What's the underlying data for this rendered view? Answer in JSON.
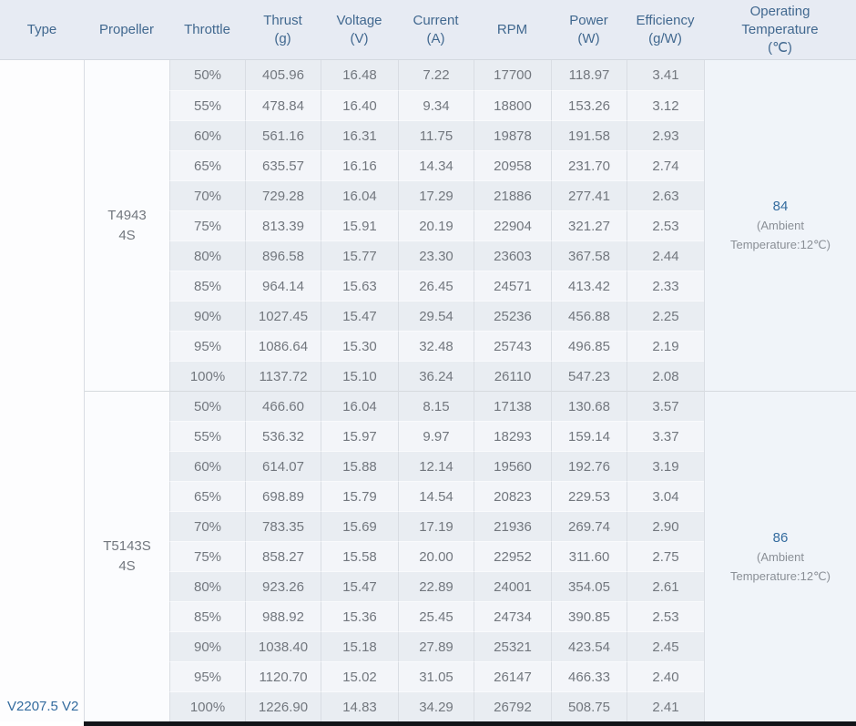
{
  "table": {
    "columns": [
      {
        "label": "Type",
        "unit": ""
      },
      {
        "label": "Propeller",
        "unit": ""
      },
      {
        "label": "Throttle",
        "unit": ""
      },
      {
        "label": "Thrust",
        "unit": "(g)"
      },
      {
        "label": "Voltage",
        "unit": "(V)"
      },
      {
        "label": "Current",
        "unit": "(A)"
      },
      {
        "label": "RPM",
        "unit": ""
      },
      {
        "label": "Power",
        "unit": "(W)"
      },
      {
        "label": "Efficiency",
        "unit": "(g/W)"
      },
      {
        "label": "Operating Temperature",
        "unit": "(℃)"
      }
    ],
    "type_label": "V2207.5 V2",
    "groups": [
      {
        "propeller_lines": [
          "T4943",
          "4S"
        ],
        "temperature": "84",
        "temperature_note_lines": [
          "(Ambient",
          "Temperature:12℃)"
        ],
        "rows": [
          {
            "throttle": "50%",
            "thrust": "405.96",
            "voltage": "16.48",
            "current": "7.22",
            "rpm": "17700",
            "power": "118.97",
            "efficiency": "3.41"
          },
          {
            "throttle": "55%",
            "thrust": "478.84",
            "voltage": "16.40",
            "current": "9.34",
            "rpm": "18800",
            "power": "153.26",
            "efficiency": "3.12"
          },
          {
            "throttle": "60%",
            "thrust": "561.16",
            "voltage": "16.31",
            "current": "11.75",
            "rpm": "19878",
            "power": "191.58",
            "efficiency": "2.93"
          },
          {
            "throttle": "65%",
            "thrust": "635.57",
            "voltage": "16.16",
            "current": "14.34",
            "rpm": "20958",
            "power": "231.70",
            "efficiency": "2.74"
          },
          {
            "throttle": "70%",
            "thrust": "729.28",
            "voltage": "16.04",
            "current": "17.29",
            "rpm": "21886",
            "power": "277.41",
            "efficiency": "2.63"
          },
          {
            "throttle": "75%",
            "thrust": "813.39",
            "voltage": "15.91",
            "current": "20.19",
            "rpm": "22904",
            "power": "321.27",
            "efficiency": "2.53"
          },
          {
            "throttle": "80%",
            "thrust": "896.58",
            "voltage": "15.77",
            "current": "23.30",
            "rpm": "23603",
            "power": "367.58",
            "efficiency": "2.44"
          },
          {
            "throttle": "85%",
            "thrust": "964.14",
            "voltage": "15.63",
            "current": "26.45",
            "rpm": "24571",
            "power": "413.42",
            "efficiency": "2.33"
          },
          {
            "throttle": "90%",
            "thrust": "1027.45",
            "voltage": "15.47",
            "current": "29.54",
            "rpm": "25236",
            "power": "456.88",
            "efficiency": "2.25"
          },
          {
            "throttle": "95%",
            "thrust": "1086.64",
            "voltage": "15.30",
            "current": "32.48",
            "rpm": "25743",
            "power": "496.85",
            "efficiency": "2.19"
          },
          {
            "throttle": "100%",
            "thrust": "1137.72",
            "voltage": "15.10",
            "current": "36.24",
            "rpm": "26110",
            "power": "547.23",
            "efficiency": "2.08"
          }
        ]
      },
      {
        "propeller_lines": [
          "T5143S",
          "4S"
        ],
        "temperature": "86",
        "temperature_note_lines": [
          "(Ambient",
          "Temperature:12℃)"
        ],
        "rows": [
          {
            "throttle": "50%",
            "thrust": "466.60",
            "voltage": "16.04",
            "current": "8.15",
            "rpm": "17138",
            "power": "130.68",
            "efficiency": "3.57"
          },
          {
            "throttle": "55%",
            "thrust": "536.32",
            "voltage": "15.97",
            "current": "9.97",
            "rpm": "18293",
            "power": "159.14",
            "efficiency": "3.37"
          },
          {
            "throttle": "60%",
            "thrust": "614.07",
            "voltage": "15.88",
            "current": "12.14",
            "rpm": "19560",
            "power": "192.76",
            "efficiency": "3.19"
          },
          {
            "throttle": "65%",
            "thrust": "698.89",
            "voltage": "15.79",
            "current": "14.54",
            "rpm": "20823",
            "power": "229.53",
            "efficiency": "3.04"
          },
          {
            "throttle": "70%",
            "thrust": "783.35",
            "voltage": "15.69",
            "current": "17.19",
            "rpm": "21936",
            "power": "269.74",
            "efficiency": "2.90"
          },
          {
            "throttle": "75%",
            "thrust": "858.27",
            "voltage": "15.58",
            "current": "20.00",
            "rpm": "22952",
            "power": "311.60",
            "efficiency": "2.75"
          },
          {
            "throttle": "80%",
            "thrust": "923.26",
            "voltage": "15.47",
            "current": "22.89",
            "rpm": "24001",
            "power": "354.05",
            "efficiency": "2.61"
          },
          {
            "throttle": "85%",
            "thrust": "988.92",
            "voltage": "15.36",
            "current": "25.45",
            "rpm": "24734",
            "power": "390.85",
            "efficiency": "2.53"
          },
          {
            "throttle": "90%",
            "thrust": "1038.40",
            "voltage": "15.18",
            "current": "27.89",
            "rpm": "25321",
            "power": "423.54",
            "efficiency": "2.45"
          },
          {
            "throttle": "95%",
            "thrust": "1120.70",
            "voltage": "15.02",
            "current": "31.05",
            "rpm": "26147",
            "power": "466.33",
            "efficiency": "2.40"
          },
          {
            "throttle": "100%",
            "thrust": "1226.90",
            "voltage": "14.83",
            "current": "34.29",
            "rpm": "26792",
            "power": "508.75",
            "efficiency": "2.41"
          }
        ]
      }
    ]
  },
  "colors": {
    "header_bg": "#e7ebf3",
    "header_text": "#41688f",
    "stripe_dark": "#e9edf2",
    "stripe_light": "#f3f5f9",
    "accent_blue": "#336b9e",
    "cell_text": "#72777e"
  }
}
